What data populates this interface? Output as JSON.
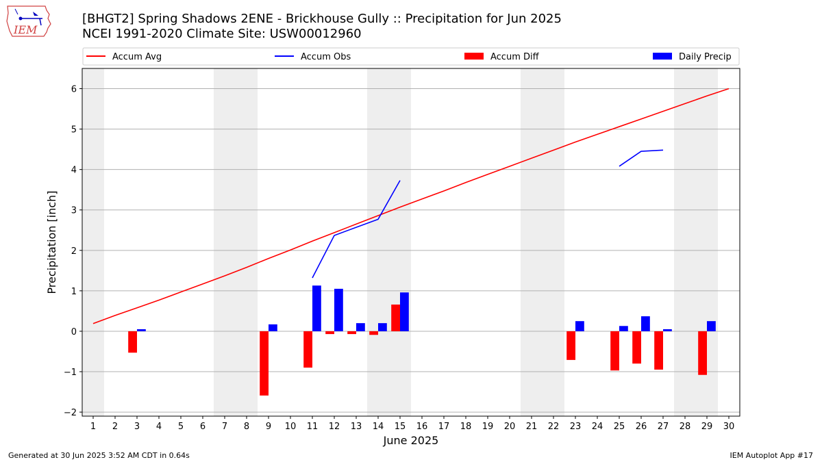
{
  "header": {
    "title_line1": "[BHGT2] Spring Shadows 2ENE - Brickhouse Gully :: Precipitation for Jun 2025",
    "title_line2": "NCEI 1991-2020 Climate Site: USW00012960",
    "logo_text": "IEM"
  },
  "footer": {
    "left": "Generated at 30 Jun 2025 3:52 AM CDT in 0.64s",
    "right": "IEM Autoplot App #17"
  },
  "colors": {
    "accum_avg": "#ff0000",
    "accum_obs": "#0000ff",
    "accum_diff": "#ff0000",
    "daily_precip": "#0000ff",
    "weekend_shade": "#eeeeee",
    "grid": "#b0b0b0"
  },
  "chart_data": {
    "type": "bar",
    "xlabel": "June 2025",
    "ylabel": "Precipitation [inch]",
    "xlim": [
      0.5,
      30.5
    ],
    "ylim": [
      -2.1,
      6.5
    ],
    "yticks": [
      -2,
      -1,
      0,
      1,
      2,
      3,
      4,
      5,
      6
    ],
    "ytick_labels": [
      "−2",
      "−1",
      "0",
      "1",
      "2",
      "3",
      "4",
      "5",
      "6"
    ],
    "days": [
      1,
      2,
      3,
      4,
      5,
      6,
      7,
      8,
      9,
      10,
      11,
      12,
      13,
      14,
      15,
      16,
      17,
      18,
      19,
      20,
      21,
      22,
      23,
      24,
      25,
      26,
      27,
      28,
      29,
      30
    ],
    "weekend_spans": [
      [
        0.5,
        1.5
      ],
      [
        6.5,
        8.5
      ],
      [
        13.5,
        15.5
      ],
      [
        20.5,
        22.5
      ],
      [
        27.5,
        29.5
      ]
    ],
    "legend": [
      "Accum Avg",
      "Accum Obs",
      "Accum Diff",
      "Daily Precip"
    ],
    "series": [
      {
        "name": "Accum Avg",
        "kind": "line",
        "values": [
          0.19,
          0.39,
          0.58,
          0.77,
          0.97,
          1.17,
          1.37,
          1.58,
          1.8,
          2.01,
          2.23,
          2.44,
          2.65,
          2.86,
          3.07,
          3.27,
          3.47,
          3.68,
          3.88,
          4.08,
          4.28,
          4.48,
          4.68,
          4.87,
          5.06,
          5.25,
          5.44,
          5.63,
          5.82,
          6.0
        ]
      },
      {
        "name": "Accum Obs",
        "kind": "line",
        "values": [
          null,
          null,
          null,
          null,
          null,
          null,
          null,
          null,
          null,
          null,
          1.32,
          2.37,
          2.57,
          2.77,
          3.73,
          null,
          null,
          null,
          null,
          null,
          null,
          null,
          null,
          null,
          4.08,
          4.45,
          4.48,
          null,
          null,
          null
        ]
      },
      {
        "name": "Accum Diff",
        "kind": "bar",
        "values": [
          null,
          null,
          -0.53,
          null,
          null,
          null,
          null,
          null,
          -1.59,
          null,
          -0.9,
          -0.07,
          -0.07,
          -0.09,
          0.66,
          null,
          null,
          null,
          null,
          null,
          null,
          null,
          -0.71,
          null,
          -0.97,
          -0.8,
          -0.95,
          null,
          -1.08,
          null
        ]
      },
      {
        "name": "Daily Precip",
        "kind": "bar",
        "values": [
          null,
          null,
          0.05,
          null,
          null,
          null,
          null,
          null,
          0.17,
          null,
          1.13,
          1.05,
          0.2,
          0.2,
          0.96,
          null,
          null,
          null,
          null,
          null,
          null,
          null,
          0.25,
          null,
          0.13,
          0.37,
          0.05,
          null,
          0.25,
          null
        ]
      }
    ]
  }
}
